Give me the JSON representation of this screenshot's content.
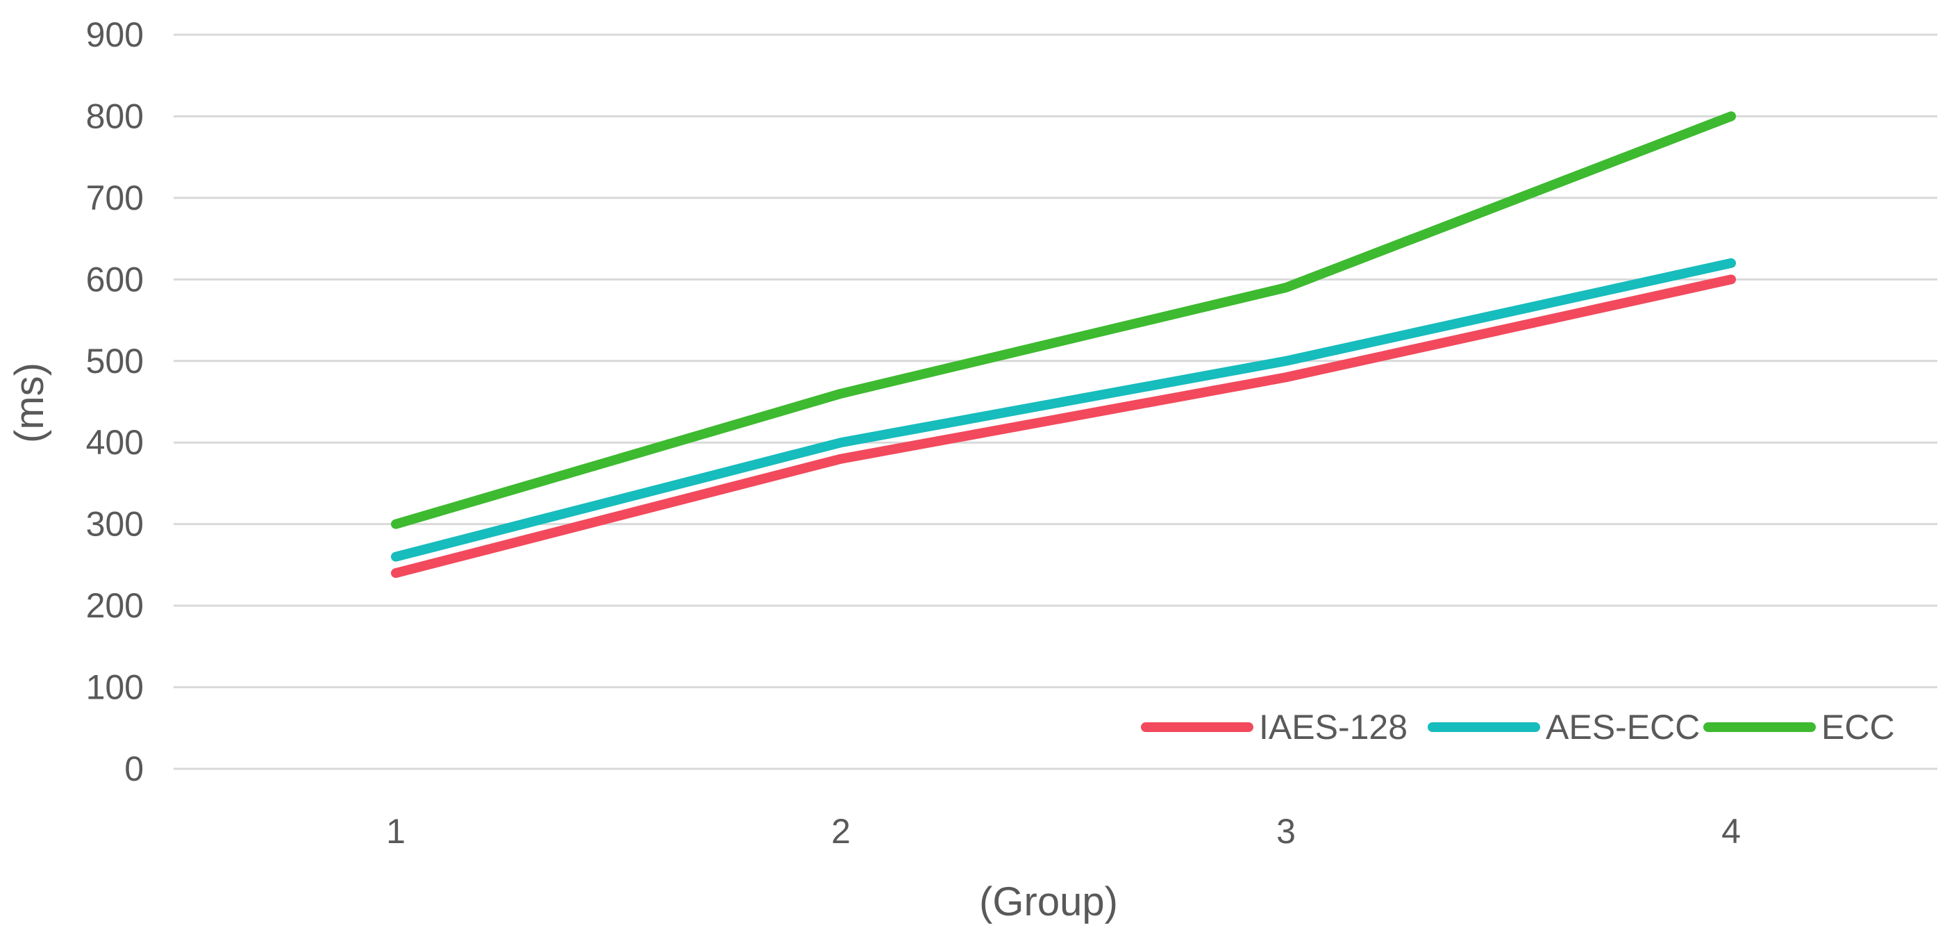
{
  "chart_data": {
    "type": "line",
    "title": "",
    "xlabel": "(Group)",
    "ylabel": "(ms)",
    "categories": [
      "1",
      "2",
      "3",
      "4"
    ],
    "ylim": [
      0,
      900
    ],
    "yticks": [
      0,
      100,
      200,
      300,
      400,
      500,
      600,
      700,
      800,
      900
    ],
    "grid": true,
    "legend_position": "bottom-right",
    "series": [
      {
        "name": "IAES-128",
        "color": "#f2495c",
        "values": [
          240,
          380,
          480,
          600
        ]
      },
      {
        "name": "AES-ECC",
        "color": "#17bcbc",
        "values": [
          260,
          400,
          500,
          620
        ]
      },
      {
        "name": "ECC",
        "color": "#3dba2f",
        "values": [
          300,
          460,
          590,
          800
        ]
      }
    ]
  }
}
